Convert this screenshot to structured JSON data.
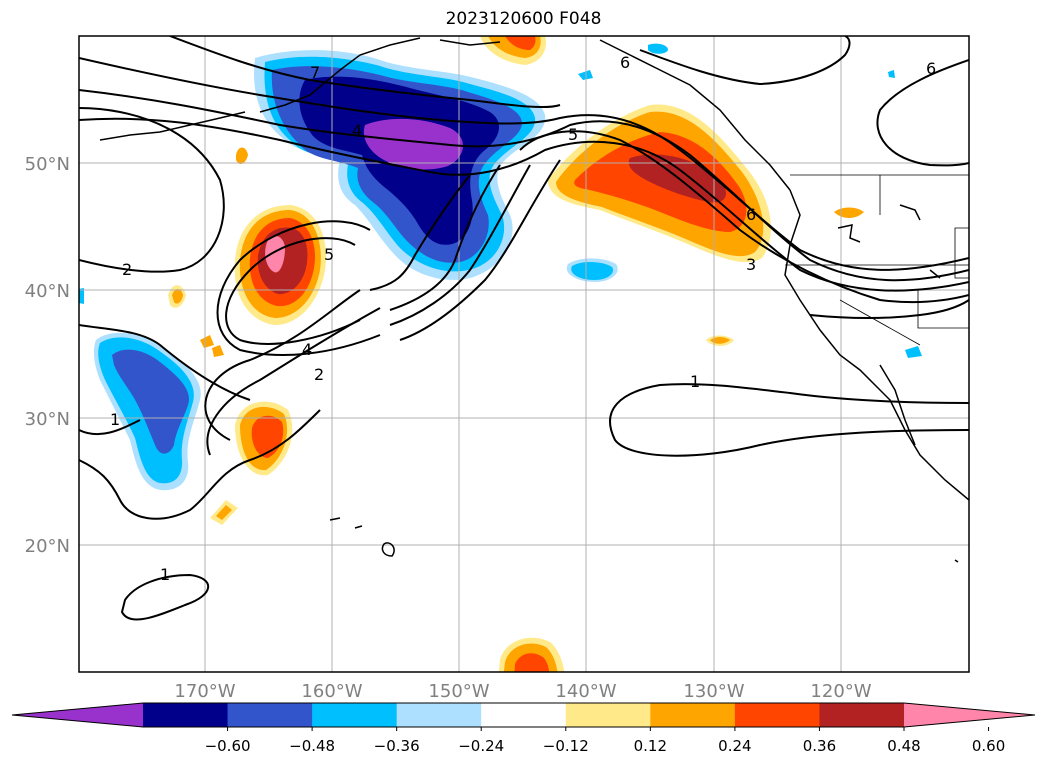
{
  "title": "2023120600 F048",
  "lat_labels": [
    "50°N",
    "40°N",
    "30°N",
    "20°N"
  ],
  "lon_labels": [
    "170°W",
    "160°W",
    "150°W",
    "140°W",
    "130°W",
    "120°W"
  ],
  "contour_labels": [
    "7",
    "4",
    "5",
    "6",
    "6",
    "5",
    "4",
    "2",
    "2",
    "1",
    "1",
    "1",
    "3",
    "6"
  ],
  "colorbar": {
    "ticks": [
      "−0.60",
      "−0.48",
      "−0.36",
      "−0.24",
      "−0.12",
      "0.12",
      "0.24",
      "0.36",
      "0.48",
      "0.60"
    ],
    "colors": [
      "#9932cc",
      "#00008b",
      "#3355cc",
      "#00bfff",
      "#ade0ff",
      "#ffffff",
      "#ffe989",
      "#ffa500",
      "#ff4500",
      "#b22222",
      "#ff85aa"
    ]
  }
}
